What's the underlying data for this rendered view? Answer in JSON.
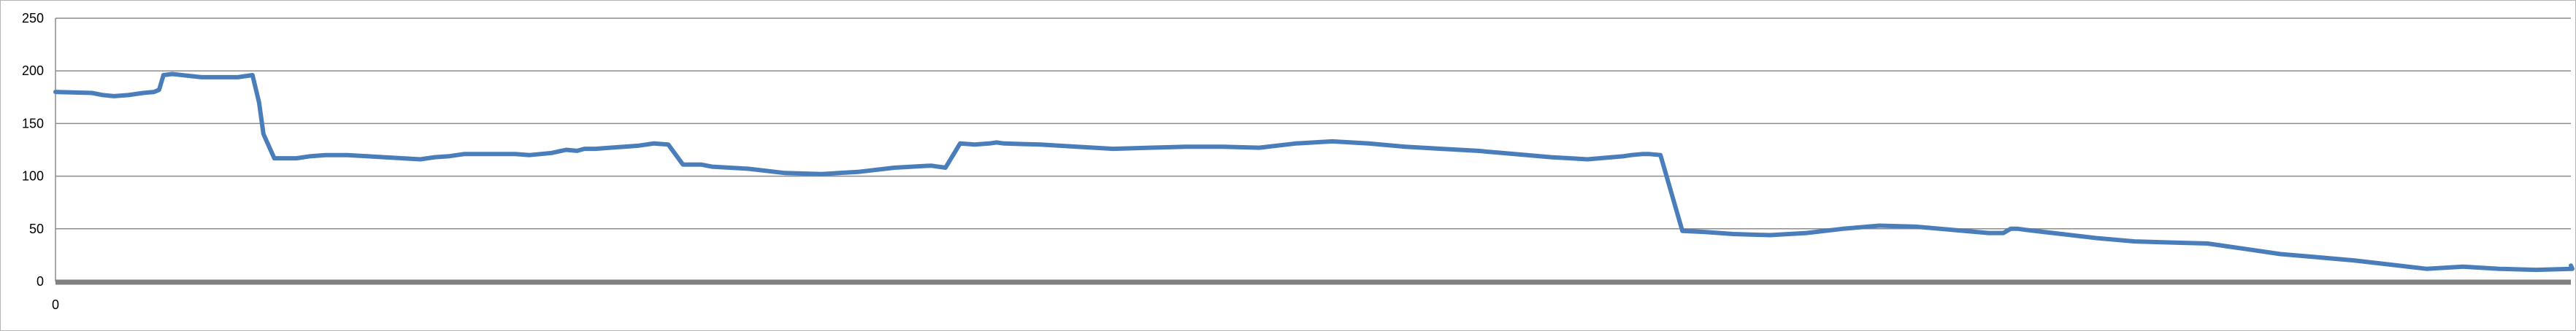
{
  "chart_data": {
    "type": "line",
    "title": "",
    "xlabel": "",
    "ylabel": "",
    "ylim": [
      0,
      250
    ],
    "y_ticks": [
      "0",
      "50",
      "100",
      "150",
      "200",
      "250"
    ],
    "x_ticks": [
      "0"
    ],
    "grid": true,
    "legend": "none",
    "colors": {
      "line": "#4a7ebb",
      "grid": "#8c8c8c",
      "x_axis": "#808080",
      "frame": "#b3b3b3"
    },
    "series": [
      {
        "x": [
          0,
          50,
          65,
          80,
          100,
          120,
          135,
          142,
          148,
          160,
          200,
          250,
          270,
          279,
          285,
          300,
          330,
          350,
          370,
          400,
          450,
          500,
          520,
          540,
          560,
          580,
          600,
          630,
          650,
          680,
          700,
          715,
          725,
          740,
          760,
          780,
          800,
          820,
          840,
          860,
          875,
          885,
          900,
          950,
          1000,
          1050,
          1100,
          1150,
          1200,
          1220,
          1240,
          1260,
          1280,
          1290,
          1300,
          1350,
          1400,
          1450,
          1500,
          1550,
          1600,
          1650,
          1700,
          1750,
          1800,
          1850,
          1900,
          1950,
          2000,
          2050,
          2100,
          2150,
          2160,
          2175,
          2185,
          2200,
          2230,
          2260,
          2300,
          2350,
          2400,
          2450,
          2500,
          2550,
          2600,
          2650,
          2670,
          2680,
          2690,
          2700,
          2750,
          2800,
          2850,
          2900,
          2950,
          3000,
          3050,
          3100,
          3150,
          3200,
          3250,
          3300,
          3350,
          3400,
          3450,
          3448
        ],
        "values": [
          180,
          179,
          177,
          176,
          177,
          179,
          180,
          182,
          196,
          197,
          194,
          194,
          196,
          170,
          140,
          117,
          117,
          119,
          120,
          120,
          118,
          116,
          118,
          119,
          121,
          121,
          121,
          121,
          120,
          122,
          125,
          124,
          126,
          126,
          127,
          128,
          129,
          131,
          130,
          111,
          111,
          111,
          109,
          107,
          103,
          102,
          104,
          108,
          110,
          108,
          131,
          130,
          131,
          132,
          131,
          130,
          128,
          126,
          127,
          128,
          128,
          127,
          131,
          133,
          131,
          128,
          126,
          124,
          121,
          118,
          116,
          119,
          120,
          121,
          121,
          120,
          48,
          47,
          45,
          44,
          46,
          50,
          53,
          52,
          49,
          46,
          46,
          50,
          50,
          49,
          45,
          41,
          38,
          37,
          36,
          31,
          26,
          23,
          20,
          16,
          12,
          14,
          12,
          11,
          12,
          15
        ]
      }
    ]
  }
}
